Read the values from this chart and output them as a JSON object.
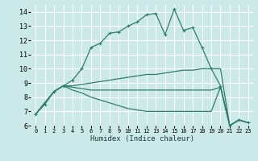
{
  "xlabel": "Humidex (Indice chaleur)",
  "background_color": "#cce9e9",
  "grid_color": "#ffffff",
  "line_color": "#2e7d6e",
  "xlim": [
    -0.5,
    23.5
  ],
  "ylim": [
    6,
    14.5
  ],
  "xticks": [
    0,
    1,
    2,
    3,
    4,
    5,
    6,
    7,
    8,
    9,
    10,
    11,
    12,
    13,
    14,
    15,
    16,
    17,
    18,
    19,
    20,
    21,
    22,
    23
  ],
  "yticks": [
    6,
    7,
    8,
    9,
    10,
    11,
    12,
    13,
    14
  ],
  "main_line": {
    "x": [
      0,
      1,
      2,
      3,
      4,
      5,
      6,
      7,
      8,
      9,
      10,
      11,
      12,
      13,
      14,
      15,
      16,
      17,
      18,
      19,
      20,
      21,
      22,
      23
    ],
    "y": [
      6.8,
      7.5,
      8.4,
      8.8,
      9.2,
      10.0,
      11.5,
      11.8,
      12.5,
      12.6,
      13.0,
      13.3,
      13.8,
      13.9,
      12.4,
      14.2,
      12.7,
      12.9,
      11.5,
      10.0,
      8.8,
      6.0,
      6.4,
      6.2
    ]
  },
  "fan_lines": [
    {
      "x": [
        0,
        2,
        3,
        4,
        5,
        6,
        7,
        8,
        9,
        10,
        11,
        12,
        13,
        14,
        15,
        16,
        17,
        18,
        19,
        20,
        21,
        22,
        23
      ],
      "y": [
        6.8,
        8.4,
        8.8,
        8.8,
        8.9,
        9.0,
        9.1,
        9.2,
        9.3,
        9.4,
        9.5,
        9.6,
        9.6,
        9.7,
        9.8,
        9.9,
        9.9,
        10.0,
        10.0,
        10.0,
        6.0,
        6.4,
        6.2
      ]
    },
    {
      "x": [
        0,
        2,
        3,
        4,
        5,
        6,
        7,
        8,
        9,
        10,
        11,
        12,
        13,
        14,
        15,
        16,
        17,
        18,
        19,
        20,
        21,
        22,
        23
      ],
      "y": [
        6.8,
        8.4,
        8.8,
        8.7,
        8.6,
        8.5,
        8.5,
        8.5,
        8.5,
        8.5,
        8.5,
        8.5,
        8.5,
        8.5,
        8.5,
        8.5,
        8.5,
        8.5,
        8.5,
        8.7,
        6.0,
        6.4,
        6.2
      ]
    },
    {
      "x": [
        0,
        2,
        3,
        4,
        5,
        6,
        7,
        8,
        9,
        10,
        11,
        12,
        13,
        14,
        15,
        16,
        17,
        18,
        19,
        20,
        21,
        22,
        23
      ],
      "y": [
        6.8,
        8.4,
        8.8,
        8.5,
        8.3,
        8.0,
        7.8,
        7.6,
        7.4,
        7.2,
        7.1,
        7.0,
        7.0,
        7.0,
        7.0,
        7.0,
        7.0,
        7.0,
        7.0,
        8.7,
        6.0,
        6.4,
        6.2
      ]
    }
  ]
}
